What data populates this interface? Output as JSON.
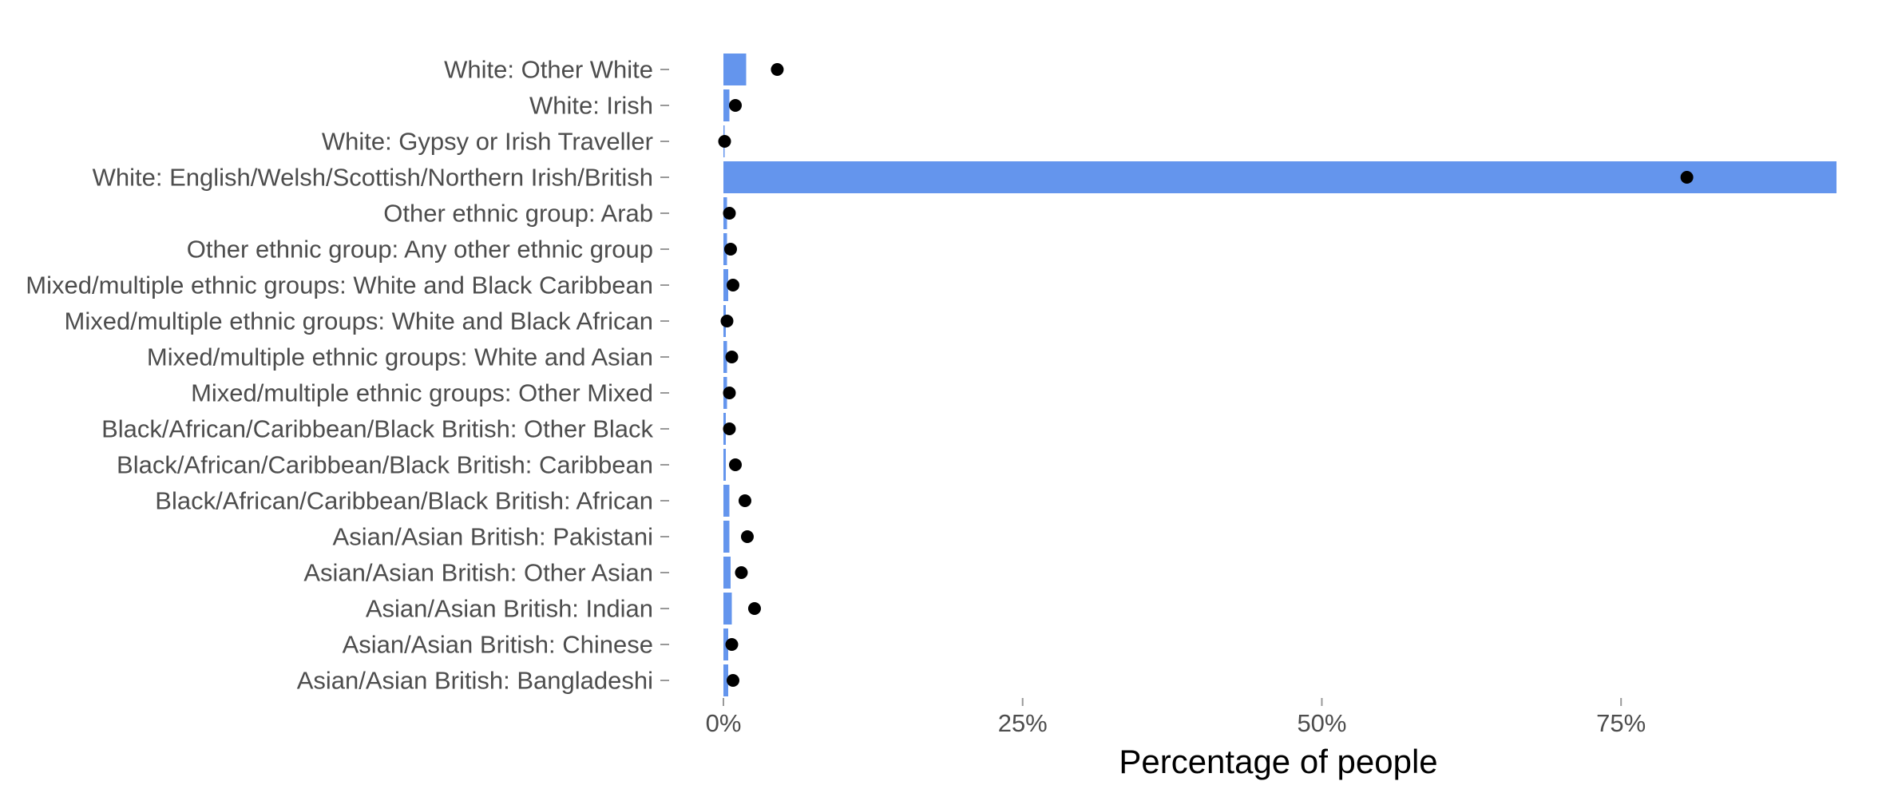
{
  "chart_data": {
    "type": "bar",
    "title": "",
    "xlabel": "Percentage of people",
    "ylabel": "",
    "xlim": [
      0,
      93
    ],
    "x_ticks": [
      0,
      25,
      50,
      75
    ],
    "x_tick_labels": [
      "0%",
      "25%",
      "50%",
      "75%"
    ],
    "grid": false,
    "legend": "none",
    "categories": [
      "White: Other White",
      "White: Irish",
      "White: Gypsy or Irish Traveller",
      "White: English/Welsh/Scottish/Northern Irish/British",
      "Other ethnic group: Arab",
      "Other ethnic group: Any other ethnic group",
      "Mixed/multiple ethnic groups: White and Black Caribbean",
      "Mixed/multiple ethnic groups: White and Black African",
      "Mixed/multiple ethnic groups: White and Asian",
      "Mixed/multiple ethnic groups: Other Mixed",
      "Black/African/Caribbean/Black British: Other Black",
      "Black/African/Caribbean/Black British: Caribbean",
      "Black/African/Caribbean/Black British: African",
      "Asian/Asian British: Pakistani",
      "Asian/Asian British: Other Asian",
      "Asian/Asian British: Indian",
      "Asian/Asian British: Chinese",
      "Asian/Asian British: Bangladeshi"
    ],
    "series": [
      {
        "kind": "bar",
        "color": "#6495ED",
        "values": [
          1.9,
          0.5,
          0.1,
          93.0,
          0.3,
          0.3,
          0.4,
          0.2,
          0.3,
          0.3,
          0.2,
          0.2,
          0.5,
          0.5,
          0.6,
          0.7,
          0.4,
          0.4
        ]
      },
      {
        "kind": "point",
        "color": "#000000",
        "values": [
          4.5,
          1.0,
          0.1,
          80.5,
          0.5,
          0.6,
          0.8,
          0.3,
          0.7,
          0.5,
          0.5,
          1.0,
          1.8,
          2.0,
          1.5,
          2.6,
          0.7,
          0.8
        ]
      }
    ]
  }
}
